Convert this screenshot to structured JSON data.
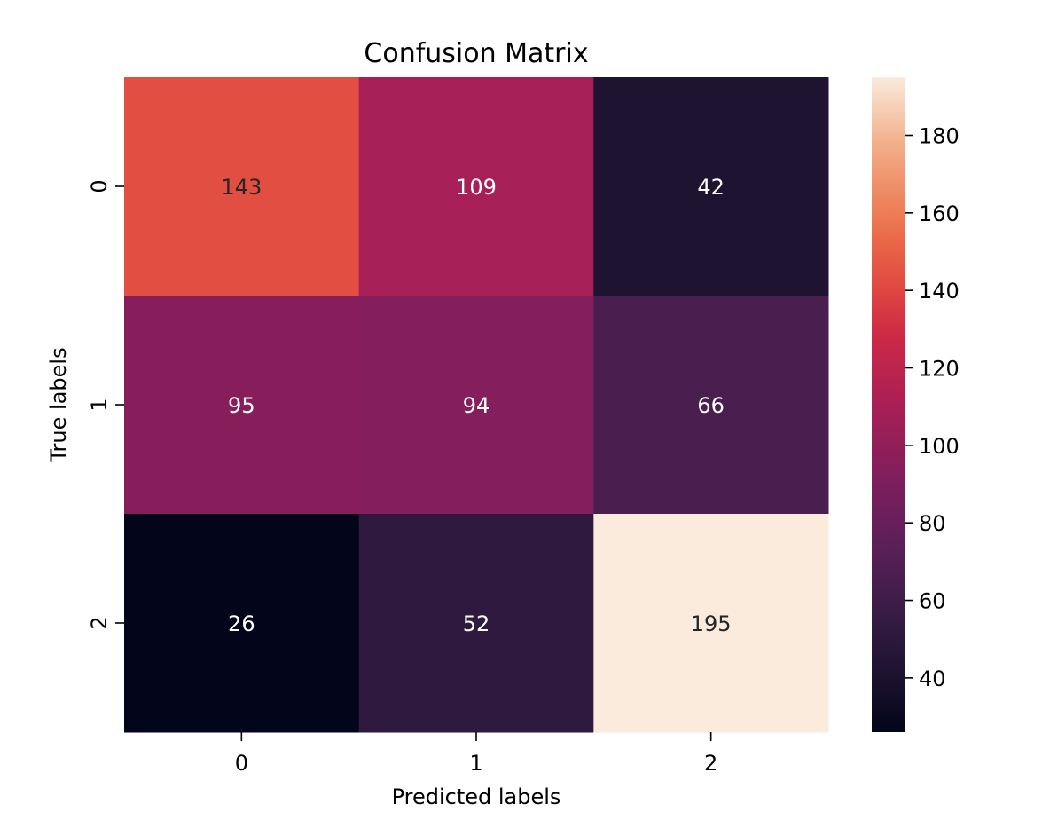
{
  "chart_data": {
    "type": "heatmap",
    "title": "Confusion Matrix",
    "xlabel": "Predicted labels",
    "ylabel": "True labels",
    "x_categories": [
      "0",
      "1",
      "2"
    ],
    "y_categories": [
      "0",
      "1",
      "2"
    ],
    "values": [
      [
        143,
        109,
        42
      ],
      [
        95,
        94,
        66
      ],
      [
        26,
        52,
        195
      ]
    ],
    "colormap": "rocket",
    "colorbar": {
      "min": 26,
      "max": 195,
      "ticks": [
        40,
        60,
        80,
        100,
        120,
        140,
        160,
        180
      ]
    },
    "colors": {
      "dark_text": "#262626",
      "light_text": "#ffffff"
    }
  }
}
